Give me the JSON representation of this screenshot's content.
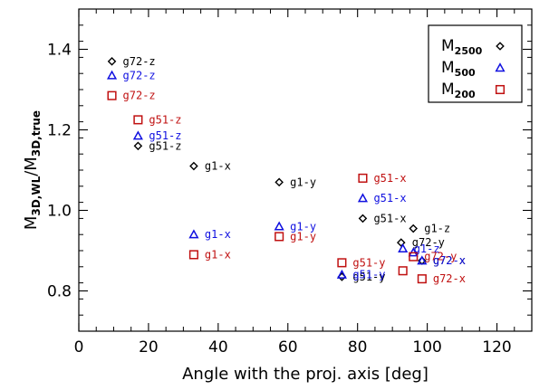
{
  "chart_data": {
    "type": "scatter",
    "xlabel": "Angle with the proj. axis [deg]",
    "ylabel_main": "M",
    "ylabel_sub1": "3D,WL",
    "ylabel_sep": "/M",
    "ylabel_sub2": "3D,true",
    "xlim": [
      0,
      130
    ],
    "ylim": [
      0.7,
      1.5
    ],
    "x_ticks": [
      0,
      20,
      40,
      60,
      80,
      100,
      120
    ],
    "y_ticks": [
      0.8,
      1.0,
      1.2,
      1.4
    ],
    "y_tick_labels": [
      "0.8",
      "1.0",
      "1.2",
      "1.4"
    ],
    "legend": {
      "position": "top-right",
      "entries": [
        {
          "main": "M",
          "sub": "2500",
          "marker": "diamond",
          "color": "#000000"
        },
        {
          "main": "M",
          "sub": "500",
          "marker": "triangle",
          "color": "#1010e0"
        },
        {
          "main": "M",
          "sub": "200",
          "marker": "square",
          "color": "#c01010"
        }
      ]
    },
    "series": [
      {
        "marker": "diamond",
        "color": "#000000",
        "points": [
          {
            "x": 9.5,
            "y": 1.37,
            "label": "g72-z"
          },
          {
            "x": 17,
            "y": 1.16,
            "label": "g51-z"
          },
          {
            "x": 33,
            "y": 1.11,
            "label": "g1-x"
          },
          {
            "x": 57.5,
            "y": 1.07,
            "label": "g1-y"
          },
          {
            "x": 81.5,
            "y": 0.98,
            "label": "g51-x"
          },
          {
            "x": 96,
            "y": 0.955,
            "label": "g1-z"
          },
          {
            "x": 92.5,
            "y": 0.92,
            "label": "g72-y"
          },
          {
            "x": 98.5,
            "y": 0.875,
            "label": "g72-x"
          },
          {
            "x": 75.5,
            "y": 0.835,
            "label": "g51-y"
          }
        ]
      },
      {
        "marker": "triangle",
        "color": "#1010e0",
        "points": [
          {
            "x": 9.5,
            "y": 1.335,
            "label": "g72-z"
          },
          {
            "x": 17,
            "y": 1.185,
            "label": "g51-z"
          },
          {
            "x": 33,
            "y": 0.94,
            "label": "g1-x"
          },
          {
            "x": 57.5,
            "y": 0.96,
            "label": "g1-y"
          },
          {
            "x": 81.5,
            "y": 1.03,
            "label": "g51-x"
          },
          {
            "x": 93,
            "y": 0.905,
            "label": "g1-z"
          },
          {
            "x": 96,
            "y": 0.895,
            "label": ""
          },
          {
            "x": 98.5,
            "y": 0.875,
            "label": "g72-x"
          },
          {
            "x": 75.5,
            "y": 0.84,
            "label": "g51-y"
          }
        ]
      },
      {
        "marker": "square",
        "color": "#c01010",
        "points": [
          {
            "x": 9.5,
            "y": 1.285,
            "label": "g72-z"
          },
          {
            "x": 17,
            "y": 1.225,
            "label": "g51-z"
          },
          {
            "x": 33,
            "y": 0.89,
            "label": "g1-x"
          },
          {
            "x": 57.5,
            "y": 0.935,
            "label": "g1-y"
          },
          {
            "x": 81.5,
            "y": 1.08,
            "label": "g51-x"
          },
          {
            "x": 75.5,
            "y": 0.87,
            "label": "g51-y"
          },
          {
            "x": 93,
            "y": 0.85,
            "label": ""
          },
          {
            "x": 96,
            "y": 0.885,
            "label": "g72-y"
          },
          {
            "x": 98.5,
            "y": 0.83,
            "label": "g72-x"
          }
        ]
      }
    ]
  }
}
